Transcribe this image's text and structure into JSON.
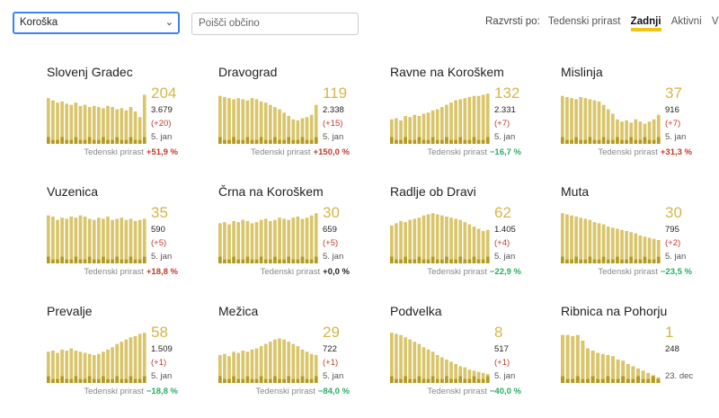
{
  "region_select": {
    "value": "Koroška"
  },
  "search": {
    "placeholder": "Poišči občino"
  },
  "sort": {
    "label": "Razvrsti po:",
    "options": [
      "Tedenski prirast",
      "Zadnji",
      "Aktivni",
      "Vsi"
    ],
    "active": "Zadnji"
  },
  "colors": {
    "bar": "#d9c56a",
    "bar_dark": "#b39a20",
    "big_number": "#d6b64a"
  },
  "cards": [
    {
      "name": "Slovenj Gradec",
      "big": "204",
      "total": "3.679",
      "diff": "(+20)",
      "date": "5. jan",
      "growth_label": "Tedenski prirast",
      "growth": "+51,9 %",
      "growth_sign": "pos",
      "bars": [
        0.82,
        0.78,
        0.74,
        0.76,
        0.72,
        0.7,
        0.74,
        0.68,
        0.7,
        0.66,
        0.68,
        0.66,
        0.64,
        0.68,
        0.66,
        0.62,
        0.64,
        0.6,
        0.66,
        0.58,
        0.48,
        0.88
      ]
    },
    {
      "name": "Dravograd",
      "big": "119",
      "total": "2.338",
      "diff": "(+15)",
      "date": "5. jan",
      "growth_label": "Tedenski prirast",
      "growth": "+150,0 %",
      "growth_sign": "pos",
      "bars": [
        0.86,
        0.84,
        0.82,
        0.8,
        0.82,
        0.8,
        0.78,
        0.82,
        0.8,
        0.76,
        0.74,
        0.7,
        0.66,
        0.62,
        0.56,
        0.5,
        0.44,
        0.42,
        0.46,
        0.48,
        0.52,
        0.7
      ]
    },
    {
      "name": "Ravne na Koroškem",
      "big": "132",
      "total": "2.331",
      "diff": "(+7)",
      "date": "5. jan",
      "growth_label": "Tedenski prirast",
      "growth": "−16,7 %",
      "growth_sign": "neg",
      "bars": [
        0.44,
        0.46,
        0.42,
        0.5,
        0.48,
        0.52,
        0.5,
        0.54,
        0.56,
        0.6,
        0.62,
        0.66,
        0.7,
        0.74,
        0.78,
        0.8,
        0.82,
        0.84,
        0.86,
        0.86,
        0.88,
        0.9
      ]
    },
    {
      "name": "Mislinja",
      "big": "37",
      "total": "916",
      "diff": "(+7)",
      "date": "5. jan",
      "growth_label": "Tedenski prirast",
      "growth": "+31,3 %",
      "growth_sign": "pos",
      "bars": [
        0.86,
        0.84,
        0.82,
        0.8,
        0.84,
        0.82,
        0.8,
        0.78,
        0.76,
        0.7,
        0.62,
        0.54,
        0.44,
        0.4,
        0.42,
        0.38,
        0.44,
        0.4,
        0.36,
        0.4,
        0.44,
        0.52
      ]
    },
    {
      "name": "Vuzenica",
      "big": "35",
      "total": "590",
      "diff": "(+5)",
      "date": "5. jan",
      "growth_label": "Tedenski prirast",
      "growth": "+18,8 %",
      "growth_sign": "pos",
      "bars": [
        0.86,
        0.84,
        0.78,
        0.82,
        0.8,
        0.84,
        0.82,
        0.86,
        0.84,
        0.8,
        0.78,
        0.82,
        0.8,
        0.84,
        0.78,
        0.8,
        0.82,
        0.78,
        0.8,
        0.76,
        0.78,
        0.8
      ]
    },
    {
      "name": "Črna na Koroškem",
      "big": "30",
      "total": "659",
      "diff": "(+5)",
      "date": "5. jan",
      "growth_label": "Tedenski prirast",
      "growth": "+0,0 %",
      "growth_sign": "zero",
      "bars": [
        0.72,
        0.74,
        0.7,
        0.76,
        0.74,
        0.78,
        0.76,
        0.72,
        0.74,
        0.78,
        0.8,
        0.76,
        0.78,
        0.82,
        0.8,
        0.78,
        0.82,
        0.84,
        0.8,
        0.82,
        0.86,
        0.9
      ]
    },
    {
      "name": "Radlje ob Dravi",
      "big": "62",
      "total": "1.405",
      "diff": "(+4)",
      "date": "5. jan",
      "growth_label": "Tedenski prirast",
      "growth": "−22,9 %",
      "growth_sign": "neg",
      "bars": [
        0.68,
        0.72,
        0.76,
        0.74,
        0.78,
        0.8,
        0.82,
        0.86,
        0.88,
        0.9,
        0.88,
        0.86,
        0.84,
        0.82,
        0.8,
        0.78,
        0.74,
        0.7,
        0.66,
        0.62,
        0.58,
        0.6
      ]
    },
    {
      "name": "Muta",
      "big": "30",
      "total": "795",
      "diff": "(+2)",
      "date": "5. jan",
      "growth_label": "Tedenski prirast",
      "growth": "−23,5 %",
      "growth_sign": "neg",
      "bars": [
        0.9,
        0.88,
        0.86,
        0.84,
        0.82,
        0.8,
        0.78,
        0.74,
        0.72,
        0.7,
        0.66,
        0.64,
        0.62,
        0.6,
        0.58,
        0.56,
        0.54,
        0.5,
        0.48,
        0.46,
        0.44,
        0.42
      ]
    },
    {
      "name": "Prevalje",
      "big": "58",
      "total": "1.509",
      "diff": "(+1)",
      "date": "5. jan",
      "growth_label": "Tedenski prirast",
      "growth": "−18,8 %",
      "growth_sign": "neg",
      "bars": [
        0.56,
        0.58,
        0.54,
        0.6,
        0.58,
        0.62,
        0.58,
        0.56,
        0.54,
        0.52,
        0.5,
        0.52,
        0.56,
        0.6,
        0.64,
        0.7,
        0.74,
        0.78,
        0.82,
        0.84,
        0.88,
        0.9
      ]
    },
    {
      "name": "Mežica",
      "big": "29",
      "total": "722",
      "diff": "(+1)",
      "date": "5. jan",
      "growth_label": "Tedenski prirast",
      "growth": "−84,0 %",
      "growth_sign": "neg",
      "bars": [
        0.5,
        0.52,
        0.48,
        0.56,
        0.54,
        0.58,
        0.56,
        0.6,
        0.62,
        0.66,
        0.7,
        0.74,
        0.78,
        0.8,
        0.78,
        0.74,
        0.7,
        0.66,
        0.6,
        0.56,
        0.52,
        0.5
      ]
    },
    {
      "name": "Podvelka",
      "big": "8",
      "total": "517",
      "diff": "(+1)",
      "date": "5. jan",
      "growth_label": "Tedenski prirast",
      "growth": "−40,0 %",
      "growth_sign": "neg",
      "bars": [
        0.9,
        0.88,
        0.86,
        0.82,
        0.78,
        0.74,
        0.7,
        0.64,
        0.6,
        0.56,
        0.5,
        0.46,
        0.42,
        0.38,
        0.34,
        0.3,
        0.28,
        0.24,
        0.22,
        0.2,
        0.18,
        0.16
      ]
    },
    {
      "name": "Ribnica na Pohorju",
      "big": "1",
      "total": "248",
      "diff": "",
      "date": "23. dec",
      "growth_label": "",
      "growth": "",
      "growth_sign": "zero",
      "bars": [
        0.86,
        0.86,
        0.84,
        0.86,
        0.76,
        0.62,
        0.58,
        0.54,
        0.52,
        0.5,
        0.48,
        0.42,
        0.4,
        0.34,
        0.3,
        0.26,
        0.22,
        0.18,
        0.14,
        0.1
      ]
    }
  ]
}
